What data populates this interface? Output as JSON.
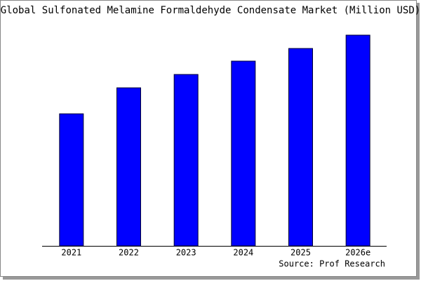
{
  "chart_data": {
    "type": "bar",
    "title": "Global Sulfonated Melamine Formaldehyde Condensate Market (Million USD)",
    "categories": [
      "2021",
      "2022",
      "2023",
      "2024",
      "2025",
      "2026e"
    ],
    "values": [
      188,
      225,
      244,
      263,
      281,
      300
    ],
    "color": "#0000ff",
    "source": "Source: Prof Research"
  }
}
